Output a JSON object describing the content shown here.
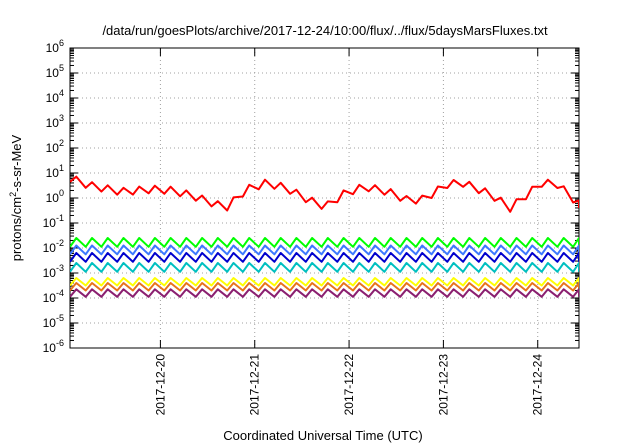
{
  "chart_data": {
    "type": "line",
    "title": "/data/run/goesPlots/archive/2017-12-24/10:00/flux/../flux/5daysMarsFluxes.txt",
    "xlabel": "Coordinated Universal Time (UTC)",
    "ylabel": {
      "prefix": "protons/cm",
      "superscript": "2",
      "suffix": "-s-sr-MeV"
    },
    "y_scale": "log",
    "ylim_exponents": [
      -6,
      6
    ],
    "y_tick_base": "10",
    "y_tick_exponents": [
      "-6",
      "-5",
      "-4",
      "-3",
      "-2",
      "-1",
      "0",
      "1",
      "2",
      "3",
      "4",
      "5",
      "6"
    ],
    "xlim": [
      "2017-12-19T01:00",
      "2017-12-24T10:30"
    ],
    "x_ticks": [
      "2017-12-20",
      "2017-12-21",
      "2017-12-22",
      "2017-12-23",
      "2017-12-24"
    ],
    "grid": true,
    "legend": "none",
    "series": [
      {
        "color": "#ff0000",
        "pattern": "sawtooth_envelope",
        "period_hours": 4,
        "envelope_log10": [
          [
            "2017-12-19T01:00",
            0.8
          ],
          [
            "2017-12-19T06:00",
            0.5
          ],
          [
            "2017-12-19T14:00",
            0.25
          ],
          [
            "2017-12-19T22:00",
            0.35
          ],
          [
            "2017-12-20T03:00",
            0.3
          ],
          [
            "2017-12-20T08:00",
            0.1
          ],
          [
            "2017-12-20T15:00",
            -0.3
          ],
          [
            "2017-12-20T17:00",
            -0.35
          ],
          [
            "2017-12-20T22:00",
            0.35
          ],
          [
            "2017-12-21T03:00",
            0.6
          ],
          [
            "2017-12-21T08:00",
            0.4
          ],
          [
            "2017-12-21T14:00",
            -0.1
          ],
          [
            "2017-12-21T18:00",
            -0.35
          ],
          [
            "2017-12-21T23:00",
            0.2
          ],
          [
            "2017-12-22T04:00",
            0.45
          ],
          [
            "2017-12-22T10:00",
            0.25
          ],
          [
            "2017-12-22T15:00",
            -0.1
          ],
          [
            "2017-12-22T19:00",
            -0.05
          ],
          [
            "2017-12-23T01:00",
            0.55
          ],
          [
            "2017-12-23T05:00",
            0.6
          ],
          [
            "2017-12-23T12:00",
            0.15
          ],
          [
            "2017-12-23T17:00",
            -0.4
          ],
          [
            "2017-12-24T01:00",
            0.6
          ],
          [
            "2017-12-24T05:00",
            0.55
          ],
          [
            "2017-12-24T10:30",
            -0.25
          ]
        ],
        "amplitude_log10": 0.3
      },
      {
        "color": "#00ff00",
        "pattern": "sawtooth",
        "period_hours": 4,
        "min_log10": -1.95,
        "max_log10": -1.6
      },
      {
        "color": "#3c78ff",
        "pattern": "sawtooth",
        "period_hours": 4,
        "min_log10": -2.25,
        "max_log10": -1.9
      },
      {
        "color": "#0000cd",
        "pattern": "sawtooth",
        "period_hours": 4,
        "min_log10": -2.55,
        "max_log10": -2.2
      },
      {
        "color": "#00c0c0",
        "pattern": "sawtooth",
        "period_hours": 4,
        "min_log10": -2.95,
        "max_log10": -2.6
      },
      {
        "color": "#ffff00",
        "pattern": "sawtooth",
        "period_hours": 4,
        "min_log10": -3.5,
        "max_log10": -3.2
      },
      {
        "color": "#e8731c",
        "pattern": "sawtooth",
        "period_hours": 4,
        "min_log10": -3.7,
        "max_log10": -3.4
      },
      {
        "color": "#8b2070",
        "pattern": "sawtooth",
        "period_hours": 4,
        "min_log10": -3.95,
        "max_log10": -3.65
      }
    ]
  }
}
